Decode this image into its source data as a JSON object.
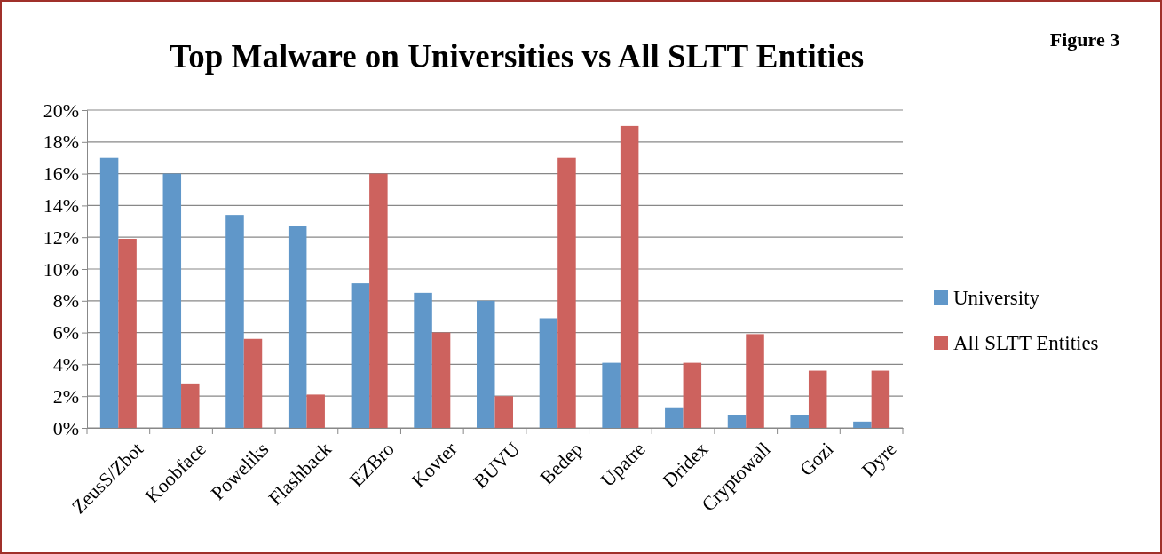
{
  "chart_data": {
    "type": "bar",
    "title": "Top Malware on Universities vs All SLTT Entities",
    "annotations": [
      "Figure 3"
    ],
    "categories": [
      "ZeusS/Zbot",
      "Koobface",
      "Poweliks",
      "Flashback",
      "EZBro",
      "Kovter",
      "BUVU",
      "Bedep",
      "Upatre",
      "Dridex",
      "Cryptowall",
      "Gozi",
      "Dyre"
    ],
    "series": [
      {
        "name": "University",
        "color": "#6097c9",
        "values": [
          17,
          16,
          13.4,
          12.7,
          9.1,
          8.5,
          8.0,
          6.9,
          4.1,
          1.3,
          0.8,
          0.8,
          0.4
        ]
      },
      {
        "name": "All SLTT Entities",
        "color": "#cd625e",
        "values": [
          11.9,
          2.8,
          5.6,
          2.1,
          16,
          6.0,
          2.0,
          17,
          19,
          4.1,
          5.9,
          3.6,
          3.6
        ]
      }
    ],
    "ylim": [
      0,
      20
    ],
    "yticks": [
      {
        "value": 0,
        "label": "0%"
      },
      {
        "value": 2,
        "label": "2%"
      },
      {
        "value": 4,
        "label": "4%"
      },
      {
        "value": 6,
        "label": "6%"
      },
      {
        "value": 8,
        "label": "8%"
      },
      {
        "value": 10,
        "label": "10%"
      },
      {
        "value": 12,
        "label": "12%"
      },
      {
        "value": 14,
        "label": "14%"
      },
      {
        "value": 16,
        "label": "16%"
      },
      {
        "value": 18,
        "label": "18%"
      },
      {
        "value": 20,
        "label": "20%"
      }
    ],
    "grid": "y",
    "legend": "right"
  }
}
